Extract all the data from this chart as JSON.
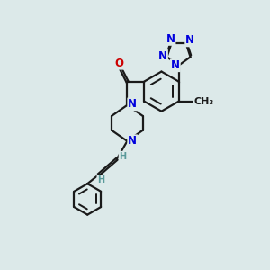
{
  "background_color": "#dce9e9",
  "bond_color": "#1a1a1a",
  "nitrogen_color": "#0000dd",
  "oxygen_color": "#cc0000",
  "carbon_color": "#1a1a1a",
  "lw": 1.6,
  "fs": 8.5,
  "dbo": 0.055,
  "xlim": [
    0,
    10
  ],
  "ylim": [
    -1,
    13
  ]
}
